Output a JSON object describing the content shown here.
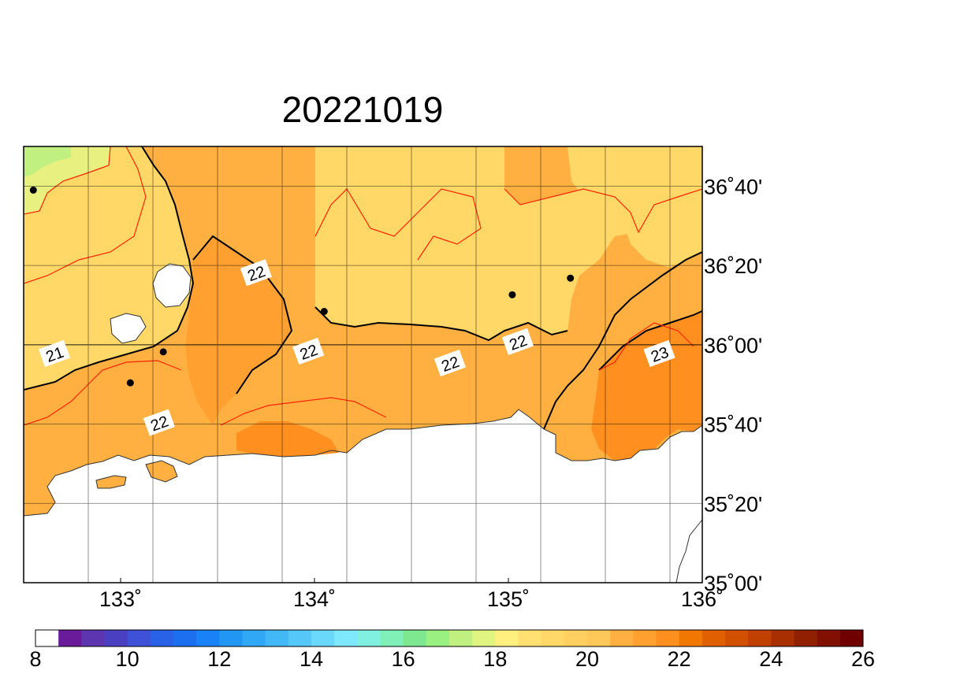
{
  "title": "20221019",
  "map": {
    "lon_range": [
      132.5,
      136.0
    ],
    "lat_range": [
      35.0,
      36.8333
    ],
    "lon_ticks": [
      {
        "value": 133,
        "label": "133˚"
      },
      {
        "value": 134,
        "label": "134˚"
      },
      {
        "value": 135,
        "label": "135˚"
      },
      {
        "value": 136,
        "label": "136˚"
      }
    ],
    "lat_ticks": [
      {
        "value": 35.0,
        "label": "35˚00'"
      },
      {
        "value": 35.3333,
        "label": "35˚20'"
      },
      {
        "value": 35.6667,
        "label": "35˚40'"
      },
      {
        "value": 36.0,
        "label": "36˚00'"
      },
      {
        "value": 36.3333,
        "label": "36˚20'"
      },
      {
        "value": 36.6667,
        "label": "36˚40'"
      }
    ],
    "contour_labels": [
      {
        "text": "22",
        "lon": 133.7,
        "lat": 36.3
      },
      {
        "text": "21",
        "lon": 132.66,
        "lat": 35.96
      },
      {
        "text": "22",
        "lon": 133.97,
        "lat": 35.97
      },
      {
        "text": "22",
        "lon": 133.2,
        "lat": 35.67
      },
      {
        "text": "22",
        "lon": 134.7,
        "lat": 35.92
      },
      {
        "text": "22",
        "lon": 135.05,
        "lat": 36.01
      },
      {
        "text": "23",
        "lon": 135.78,
        "lat": 35.96
      }
    ],
    "stations": [
      {
        "lon": 132.55,
        "lat": 36.65
      },
      {
        "lon": 133.05,
        "lat": 35.84
      },
      {
        "lon": 133.22,
        "lat": 35.97
      },
      {
        "lon": 134.05,
        "lat": 36.14
      },
      {
        "lon": 135.02,
        "lat": 36.21
      },
      {
        "lon": 135.32,
        "lat": 36.28
      }
    ]
  },
  "colorbar": {
    "tick_labels": [
      "8",
      "10",
      "12",
      "14",
      "16",
      "18",
      "20",
      "22",
      "24",
      "26"
    ],
    "colors": [
      "#ffffff",
      "#6a1b9a",
      "#5e35b1",
      "#4a3fc0",
      "#3f51d6",
      "#2962e6",
      "#1e6ff0",
      "#1a82f7",
      "#2196f3",
      "#30a8f5",
      "#42b8f7",
      "#55c8f9",
      "#6ad8fb",
      "#7ee8fd",
      "#80f0e0",
      "#80f0b8",
      "#7ee890",
      "#9af080",
      "#c0f080",
      "#e0f480",
      "#fff080",
      "#ffe070",
      "#ffd868",
      "#ffd060",
      "#ffc858",
      "#ffb040",
      "#ffa030",
      "#ff9020",
      "#f07800",
      "#e06000",
      "#d05000",
      "#c04000",
      "#a83000",
      "#902000",
      "#801000",
      "#700000"
    ]
  }
}
